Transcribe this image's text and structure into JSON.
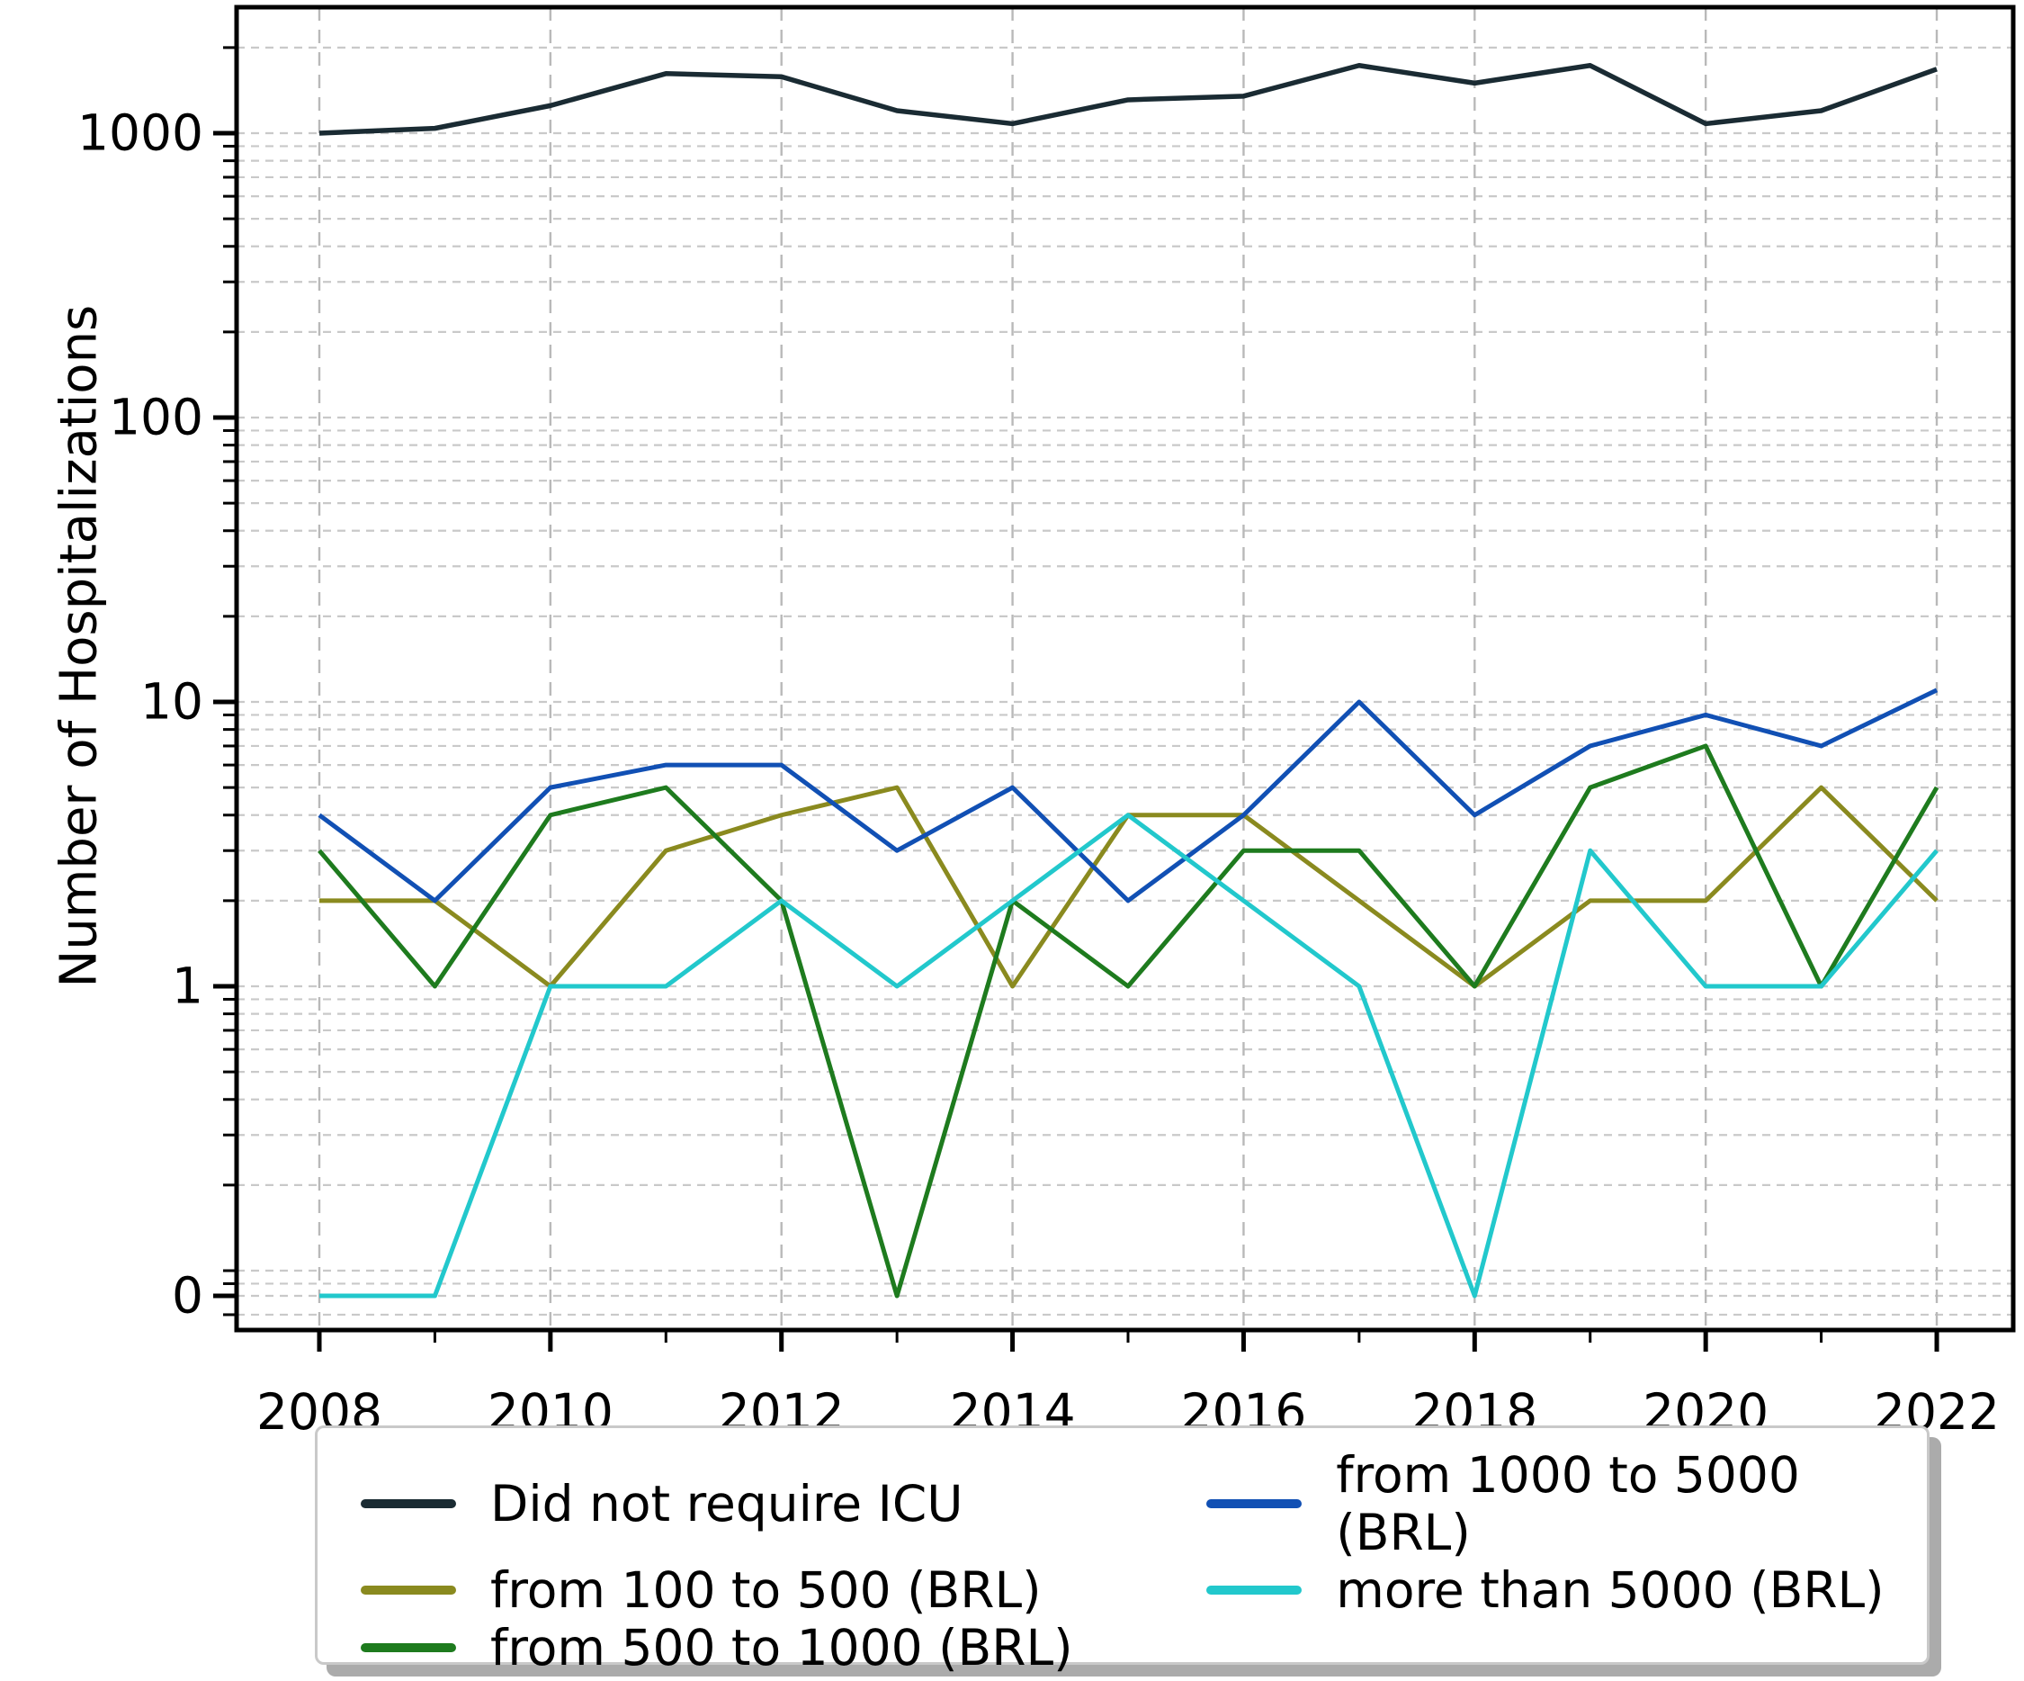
{
  "chart_data": {
    "type": "line",
    "title": "",
    "xlabel": "",
    "ylabel": "Number of Hospitalizations",
    "yscale": "symlog",
    "grid": true,
    "legend_position": "bottom-outside, 2 columns",
    "xlim": [
      2007.3,
      2022.65
    ],
    "ylim": [
      0,
      2800
    ],
    "x": [
      2008,
      2009,
      2010,
      2011,
      2012,
      2013,
      2014,
      2015,
      2016,
      2017,
      2018,
      2019,
      2020,
      2021,
      2022
    ],
    "xticks": [
      2008,
      2010,
      2012,
      2014,
      2016,
      2018,
      2020,
      2022
    ],
    "yticks": [
      {
        "value": 0,
        "label": "0"
      },
      {
        "value": 1,
        "label": "1"
      },
      {
        "value": 10,
        "label": "10"
      },
      {
        "value": 100,
        "label": "100"
      },
      {
        "value": 1000,
        "label": "1000"
      }
    ],
    "series": [
      {
        "name": "Did not require ICU",
        "color": "#1a2b33",
        "values": [
          1000,
          1040,
          1250,
          1620,
          1580,
          1200,
          1080,
          1310,
          1350,
          1730,
          1500,
          1730,
          1080,
          1200,
          1680
        ]
      },
      {
        "name": "from 100 to 500 (BRL)",
        "color": "#8a8a1f",
        "values": [
          2,
          2,
          1,
          3,
          4,
          5,
          1,
          4,
          4,
          2,
          1,
          2,
          2,
          5,
          2
        ]
      },
      {
        "name": "from 500 to 1000 (BRL)",
        "color": "#1e7b1e",
        "values": [
          3,
          1,
          4,
          5,
          2,
          0,
          2,
          1,
          3,
          3,
          1,
          5,
          7,
          1,
          5
        ]
      },
      {
        "name": "from 1000 to 5000 (BRL)",
        "color": "#1150b4",
        "values": [
          4,
          2,
          5,
          6,
          6,
          3,
          5,
          2,
          4,
          10,
          4,
          7,
          9,
          7,
          11
        ]
      },
      {
        "name": "more than 5000 (BRL)",
        "color": "#22c8cc",
        "values": [
          0,
          0,
          1,
          1,
          2,
          1,
          2,
          4,
          2,
          1,
          0,
          3,
          1,
          1,
          3
        ]
      }
    ]
  }
}
